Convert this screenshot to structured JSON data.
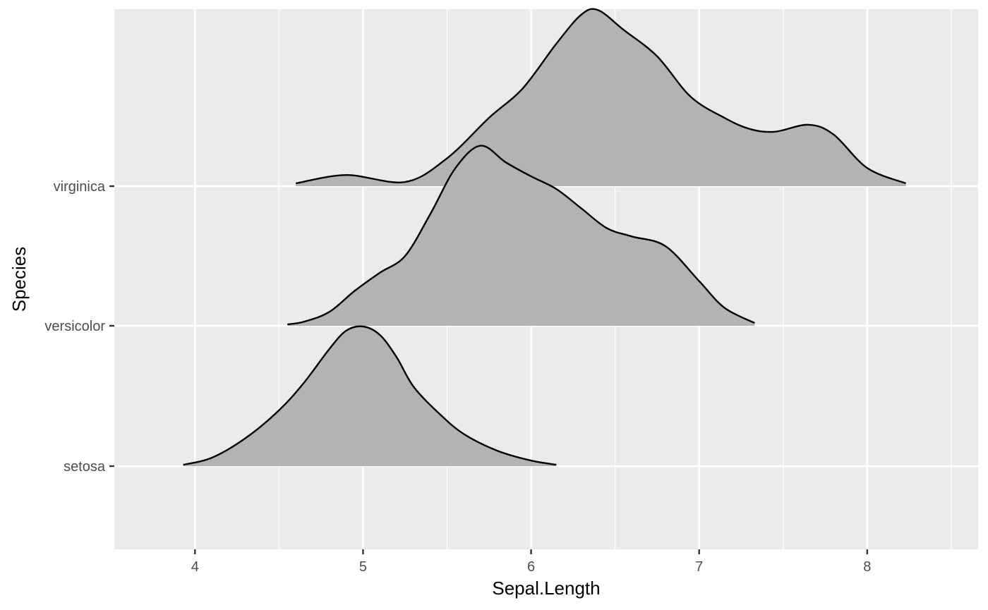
{
  "chart_data": {
    "type": "ridgeline",
    "xlabel": "Sepal.Length",
    "ylabel": "Species",
    "xlim": [
      3.52,
      8.66
    ],
    "x_ticks": [
      4,
      5,
      6,
      7,
      8
    ],
    "categories": [
      "setosa",
      "versicolor",
      "virginica"
    ],
    "grid": true,
    "colors": {
      "panel": "#ebebeb",
      "grid": "#ffffff",
      "fill": "#b3b3b3",
      "line": "#000000"
    },
    "series": [
      {
        "name": "setosa",
        "points": [
          [
            3.93,
            0.01
          ],
          [
            4.1,
            0.06
          ],
          [
            4.3,
            0.2
          ],
          [
            4.5,
            0.4
          ],
          [
            4.65,
            0.6
          ],
          [
            4.8,
            0.84
          ],
          [
            4.9,
            0.97
          ],
          [
            5.0,
            1.0
          ],
          [
            5.1,
            0.94
          ],
          [
            5.2,
            0.78
          ],
          [
            5.3,
            0.57
          ],
          [
            5.45,
            0.38
          ],
          [
            5.6,
            0.23
          ],
          [
            5.8,
            0.11
          ],
          [
            6.0,
            0.04
          ],
          [
            6.15,
            0.01
          ]
        ]
      },
      {
        "name": "versicolor",
        "points": [
          [
            4.55,
            0.01
          ],
          [
            4.65,
            0.03
          ],
          [
            4.8,
            0.1
          ],
          [
            4.95,
            0.25
          ],
          [
            5.1,
            0.38
          ],
          [
            5.25,
            0.5
          ],
          [
            5.4,
            0.8
          ],
          [
            5.55,
            1.13
          ],
          [
            5.7,
            1.29
          ],
          [
            5.85,
            1.17
          ],
          [
            6.0,
            1.07
          ],
          [
            6.15,
            0.98
          ],
          [
            6.3,
            0.84
          ],
          [
            6.45,
            0.7
          ],
          [
            6.6,
            0.64
          ],
          [
            6.8,
            0.57
          ],
          [
            7.0,
            0.32
          ],
          [
            7.15,
            0.13
          ],
          [
            7.33,
            0.02
          ]
        ]
      },
      {
        "name": "virginica",
        "points": [
          [
            4.6,
            0.02
          ],
          [
            4.9,
            0.08
          ],
          [
            5.25,
            0.03
          ],
          [
            5.5,
            0.2
          ],
          [
            5.75,
            0.49
          ],
          [
            5.95,
            0.7
          ],
          [
            6.15,
            1.02
          ],
          [
            6.3,
            1.23
          ],
          [
            6.4,
            1.26
          ],
          [
            6.55,
            1.12
          ],
          [
            6.75,
            0.93
          ],
          [
            6.95,
            0.64
          ],
          [
            7.15,
            0.49
          ],
          [
            7.3,
            0.41
          ],
          [
            7.45,
            0.39
          ],
          [
            7.65,
            0.44
          ],
          [
            7.8,
            0.37
          ],
          [
            8.0,
            0.13
          ],
          [
            8.23,
            0.02
          ]
        ]
      }
    ]
  }
}
